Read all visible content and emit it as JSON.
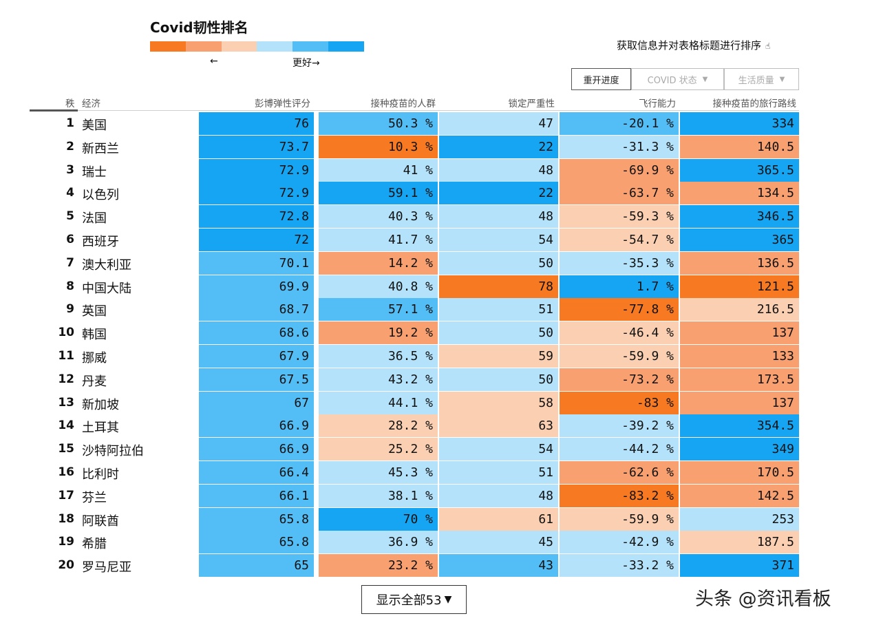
{
  "title": "Covid韧性排名",
  "legend": {
    "colors": [
      "#f77a22",
      "#f8a070",
      "#fbcfb2",
      "#b3e2fa",
      "#53bdf5",
      "#16a5f2"
    ],
    "left_arrow": "←",
    "better_label": "更好→"
  },
  "sort_hint": {
    "text": "获取信息并对表格标题进行排序",
    "icon": "hand-pointer-icon"
  },
  "controls": {
    "reset_label": "重开进度",
    "covid_label": "COVID 状态",
    "life_label": "生活质量",
    "filter_icon": "▼"
  },
  "headers": {
    "rank": "秩",
    "economy": "经济",
    "c1": "彭博弹性评分",
    "c2": "接种疫苗的人群",
    "c3": "锁定严重性",
    "c4": "飞行能力",
    "c5": "接种疫苗的旅行路线"
  },
  "rows": [
    {
      "rank": "1",
      "country": "美国",
      "c1": "76",
      "c2": "50.3 %",
      "c3": "47",
      "c4": "-20.1 %",
      "c5": "334"
    },
    {
      "rank": "2",
      "country": "新西兰",
      "c1": "73.7",
      "c2": "10.3 %",
      "c3": "22",
      "c4": "-31.3 %",
      "c5": "140.5"
    },
    {
      "rank": "3",
      "country": "瑞士",
      "c1": "72.9",
      "c2": "41 %",
      "c3": "48",
      "c4": "-69.9 %",
      "c5": "365.5"
    },
    {
      "rank": "4",
      "country": "以色列",
      "c1": "72.9",
      "c2": "59.1 %",
      "c3": "22",
      "c4": "-63.7 %",
      "c5": "134.5"
    },
    {
      "rank": "5",
      "country": "法国",
      "c1": "72.8",
      "c2": "40.3 %",
      "c3": "48",
      "c4": "-59.3 %",
      "c5": "346.5"
    },
    {
      "rank": "6",
      "country": "西班牙",
      "c1": "72",
      "c2": "41.7 %",
      "c3": "54",
      "c4": "-54.7 %",
      "c5": "365"
    },
    {
      "rank": "7",
      "country": "澳大利亚",
      "c1": "70.1",
      "c2": "14.2 %",
      "c3": "50",
      "c4": "-35.3 %",
      "c5": "136.5"
    },
    {
      "rank": "8",
      "country": "中国大陆",
      "c1": "69.9",
      "c2": "40.8 %",
      "c3": "78",
      "c4": "1.7 %",
      "c5": "121.5"
    },
    {
      "rank": "9",
      "country": "英国",
      "c1": "68.7",
      "c2": "57.1 %",
      "c3": "51",
      "c4": "-77.8 %",
      "c5": "216.5"
    },
    {
      "rank": "10",
      "country": "韩国",
      "c1": "68.6",
      "c2": "19.2 %",
      "c3": "50",
      "c4": "-46.4 %",
      "c5": "137"
    },
    {
      "rank": "11",
      "country": "挪威",
      "c1": "67.9",
      "c2": "36.5 %",
      "c3": "59",
      "c4": "-59.9 %",
      "c5": "133"
    },
    {
      "rank": "12",
      "country": "丹麦",
      "c1": "67.5",
      "c2": "43.2 %",
      "c3": "50",
      "c4": "-73.2 %",
      "c5": "173.5"
    },
    {
      "rank": "13",
      "country": "新加坡",
      "c1": "67",
      "c2": "44.1 %",
      "c3": "58",
      "c4": "-83 %",
      "c5": "137"
    },
    {
      "rank": "14",
      "country": "土耳其",
      "c1": "66.9",
      "c2": "28.2 %",
      "c3": "63",
      "c4": "-39.2 %",
      "c5": "354.5"
    },
    {
      "rank": "15",
      "country": "沙特阿拉伯",
      "c1": "66.9",
      "c2": "25.2 %",
      "c3": "54",
      "c4": "-44.2 %",
      "c5": "349"
    },
    {
      "rank": "16",
      "country": "比利时",
      "c1": "66.4",
      "c2": "45.3 %",
      "c3": "51",
      "c4": "-62.6 %",
      "c5": "170.5"
    },
    {
      "rank": "17",
      "country": "芬兰",
      "c1": "66.1",
      "c2": "38.1 %",
      "c3": "48",
      "c4": "-83.2 %",
      "c5": "142.5"
    },
    {
      "rank": "18",
      "country": "阿联酋",
      "c1": "65.8",
      "c2": "70 %",
      "c3": "61",
      "c4": "-59.9 %",
      "c5": "253"
    },
    {
      "rank": "19",
      "country": "希腊",
      "c1": "65.8",
      "c2": "36.9 %",
      "c3": "45",
      "c4": "-42.9 %",
      "c5": "187.5"
    },
    {
      "rank": "20",
      "country": "罗马尼亚",
      "c1": "65",
      "c2": "23.2 %",
      "c3": "43",
      "c4": "-33.2 %",
      "c5": "371"
    }
  ],
  "row_colors": [
    [
      "#16a5f2",
      "#53bdf5",
      "#b3e2fa",
      "#53bdf5",
      "#16a5f2"
    ],
    [
      "#16a5f2",
      "#f77a22",
      "#16a5f2",
      "#b3e2fa",
      "#f8a070"
    ],
    [
      "#16a5f2",
      "#b3e2fa",
      "#b3e2fa",
      "#f8a070",
      "#16a5f2"
    ],
    [
      "#16a5f2",
      "#16a5f2",
      "#16a5f2",
      "#f8a070",
      "#f8a070"
    ],
    [
      "#16a5f2",
      "#b3e2fa",
      "#b3e2fa",
      "#fbcfb2",
      "#16a5f2"
    ],
    [
      "#16a5f2",
      "#b3e2fa",
      "#b3e2fa",
      "#fbcfb2",
      "#16a5f2"
    ],
    [
      "#53bdf5",
      "#f8a070",
      "#b3e2fa",
      "#b3e2fa",
      "#f8a070"
    ],
    [
      "#53bdf5",
      "#b3e2fa",
      "#f77a22",
      "#16a5f2",
      "#f77a22"
    ],
    [
      "#53bdf5",
      "#53bdf5",
      "#b3e2fa",
      "#f77a22",
      "#fbcfb2"
    ],
    [
      "#53bdf5",
      "#f8a070",
      "#b3e2fa",
      "#fbcfb2",
      "#f8a070"
    ],
    [
      "#53bdf5",
      "#b3e2fa",
      "#fbcfb2",
      "#fbcfb2",
      "#f8a070"
    ],
    [
      "#53bdf5",
      "#b3e2fa",
      "#b3e2fa",
      "#f8a070",
      "#f8a070"
    ],
    [
      "#53bdf5",
      "#b3e2fa",
      "#fbcfb2",
      "#f77a22",
      "#f8a070"
    ],
    [
      "#53bdf5",
      "#fbcfb2",
      "#fbcfb2",
      "#b3e2fa",
      "#16a5f2"
    ],
    [
      "#53bdf5",
      "#fbcfb2",
      "#b3e2fa",
      "#b3e2fa",
      "#16a5f2"
    ],
    [
      "#53bdf5",
      "#b3e2fa",
      "#b3e2fa",
      "#f8a070",
      "#f8a070"
    ],
    [
      "#53bdf5",
      "#b3e2fa",
      "#b3e2fa",
      "#f77a22",
      "#f8a070"
    ],
    [
      "#53bdf5",
      "#16a5f2",
      "#fbcfb2",
      "#fbcfb2",
      "#b3e2fa"
    ],
    [
      "#53bdf5",
      "#b3e2fa",
      "#b3e2fa",
      "#b3e2fa",
      "#fbcfb2"
    ],
    [
      "#53bdf5",
      "#f8a070",
      "#53bdf5",
      "#b3e2fa",
      "#16a5f2"
    ]
  ],
  "show_all": {
    "label": "显示全部53",
    "icon": "▼"
  },
  "watermark": "头条 @资讯看板",
  "chart_data": {
    "type": "table",
    "title": "Covid韧性排名",
    "columns": [
      "秩",
      "经济",
      "彭博弹性评分",
      "接种疫苗的人群",
      "锁定严重性",
      "飞行能力",
      "接种疫苗的旅行路线"
    ],
    "rows": [
      [
        1,
        "美国",
        76,
        50.3,
        47,
        -20.1,
        334
      ],
      [
        2,
        "新西兰",
        73.7,
        10.3,
        22,
        -31.3,
        140.5
      ],
      [
        3,
        "瑞士",
        72.9,
        41,
        48,
        -69.9,
        365.5
      ],
      [
        4,
        "以色列",
        72.9,
        59.1,
        22,
        -63.7,
        134.5
      ],
      [
        5,
        "法国",
        72.8,
        40.3,
        48,
        -59.3,
        346.5
      ],
      [
        6,
        "西班牙",
        72,
        41.7,
        54,
        -54.7,
        365
      ],
      [
        7,
        "澳大利亚",
        70.1,
        14.2,
        50,
        -35.3,
        136.5
      ],
      [
        8,
        "中国大陆",
        69.9,
        40.8,
        78,
        1.7,
        121.5
      ],
      [
        9,
        "英国",
        68.7,
        57.1,
        51,
        -77.8,
        216.5
      ],
      [
        10,
        "韩国",
        68.6,
        19.2,
        50,
        -46.4,
        137
      ],
      [
        11,
        "挪威",
        67.9,
        36.5,
        59,
        -59.9,
        133
      ],
      [
        12,
        "丹麦",
        67.5,
        43.2,
        50,
        -73.2,
        173.5
      ],
      [
        13,
        "新加坡",
        67,
        44.1,
        58,
        -83,
        137
      ],
      [
        14,
        "土耳其",
        66.9,
        28.2,
        63,
        -39.2,
        354.5
      ],
      [
        15,
        "沙特阿拉伯",
        66.9,
        25.2,
        54,
        -44.2,
        349
      ],
      [
        16,
        "比利时",
        66.4,
        45.3,
        51,
        -62.6,
        170.5
      ],
      [
        17,
        "芬兰",
        66.1,
        38.1,
        48,
        -83.2,
        142.5
      ],
      [
        18,
        "阿联酋",
        65.8,
        70,
        61,
        -59.9,
        253
      ],
      [
        19,
        "希腊",
        65.8,
        36.9,
        45,
        -42.9,
        187.5
      ],
      [
        20,
        "罗马尼亚",
        65,
        23.2,
        43,
        -33.2,
        371
      ]
    ]
  }
}
